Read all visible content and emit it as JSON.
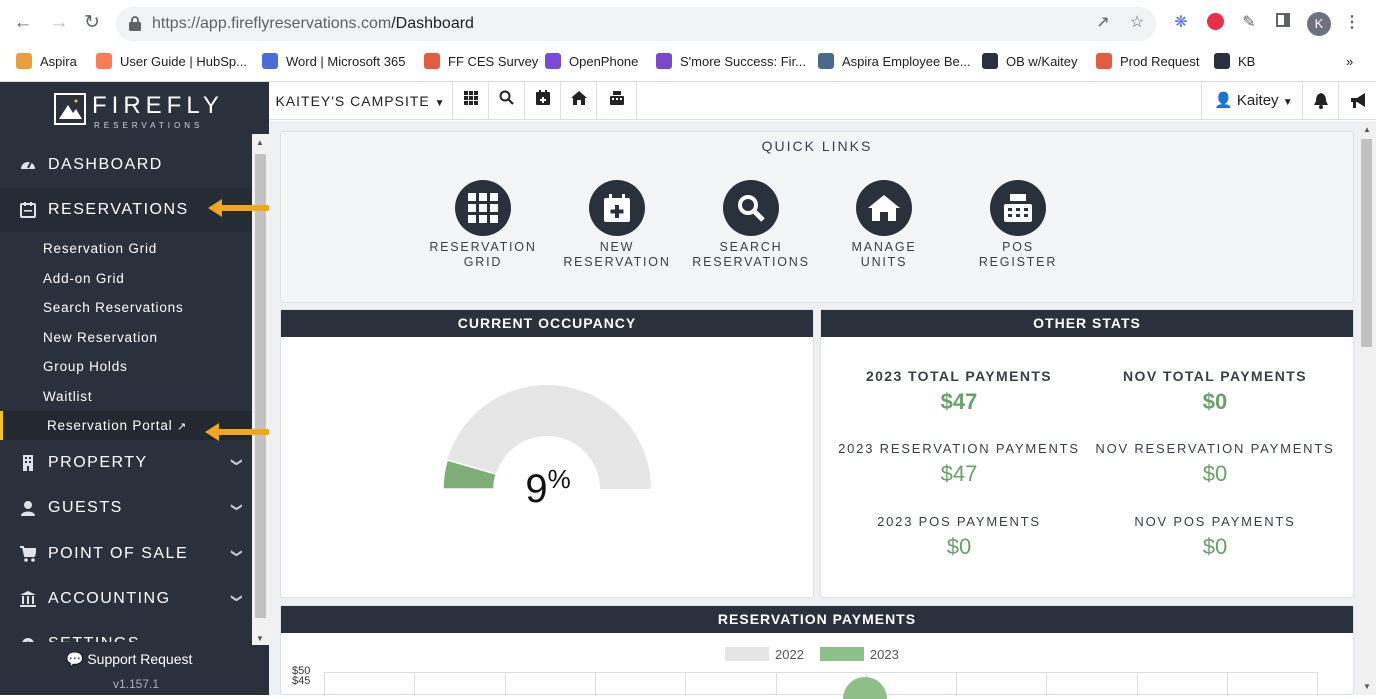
{
  "browser": {
    "url_host": "https://app.fireflyreservations.com",
    "url_path": "/Dashboard",
    "profile_initial": "K"
  },
  "bookmarks": [
    {
      "label": "Aspira",
      "color": "#e8a13a"
    },
    {
      "label": "User Guide | HubSp...",
      "color": "#ff7a59"
    },
    {
      "label": "Word | Microsoft 365",
      "color": "#4b6bd6"
    },
    {
      "label": "FF CES Survey",
      "color": "#e25b47"
    },
    {
      "label": "OpenPhone",
      "color": "#7b4bd6"
    },
    {
      "label": "S'more Success: Fir...",
      "color": "#7a49c9"
    },
    {
      "label": "Aspira Employee Be...",
      "color": "#4a6a8a"
    },
    {
      "label": "OB w/Kaitey",
      "color": "#2b313c"
    },
    {
      "label": "Prod Request",
      "color": "#e25b47"
    },
    {
      "label": "KB",
      "color": "#2b313c"
    }
  ],
  "bookmarks_more": "»",
  "sidebar": {
    "brand": "FIREFLY",
    "brand_sub": "RESERVATIONS",
    "nav": [
      {
        "label": "DASHBOARD",
        "icon": "dashboard-icon"
      },
      {
        "label": "RESERVATIONS",
        "icon": "calendar-icon"
      },
      {
        "label": "PROPERTY",
        "icon": "building-icon"
      },
      {
        "label": "GUESTS",
        "icon": "user-icon"
      },
      {
        "label": "POINT OF SALE",
        "icon": "cart-icon"
      },
      {
        "label": "ACCOUNTING",
        "icon": "bank-icon"
      },
      {
        "label": "SETTINGS",
        "icon": "gear-icon"
      }
    ],
    "reservations_sub": [
      "Reservation Grid",
      "Add-on Grid",
      "Search Reservations",
      "New Reservation",
      "Group Holds",
      "Waitlist",
      "Reservation Portal"
    ],
    "support": "Support Request",
    "version": "v1.157.1"
  },
  "topbar": {
    "campsite": "KAITEY'S CAMPSITE",
    "user": "Kaitey"
  },
  "quick_links": {
    "title": "QUICK LINKS",
    "items": [
      {
        "line1": "RESERVATION",
        "line2": "GRID",
        "icon": "grid-icon"
      },
      {
        "line1": "NEW",
        "line2": "RESERVATION",
        "icon": "calendar-plus-icon"
      },
      {
        "line1": "SEARCH",
        "line2": "RESERVATIONS",
        "icon": "search-icon"
      },
      {
        "line1": "MANAGE",
        "line2": "UNITS",
        "icon": "home-icon"
      },
      {
        "line1": "POS",
        "line2": "REGISTER",
        "icon": "cash-register-icon"
      }
    ]
  },
  "occupancy": {
    "title": "CURRENT OCCUPANCY",
    "value": "9",
    "unit": "%",
    "fraction": 0.09
  },
  "other_stats": {
    "title": "OTHER STATS",
    "items": [
      {
        "label": "2023 TOTAL PAYMENTS",
        "value": "$47"
      },
      {
        "label": "NOV TOTAL PAYMENTS",
        "value": "$0"
      },
      {
        "label": "2023 RESERVATION PAYMENTS",
        "value": "$47"
      },
      {
        "label": "NOV RESERVATION PAYMENTS",
        "value": "$0"
      },
      {
        "label": "2023 POS PAYMENTS",
        "value": "$0"
      },
      {
        "label": "NOV POS PAYMENTS",
        "value": "$0"
      }
    ]
  },
  "payments": {
    "title": "RESERVATION PAYMENTS",
    "legend": [
      {
        "label": "2022",
        "color": "#e5e5e5"
      },
      {
        "label": "2023",
        "color": "#8fbf88"
      }
    ],
    "ticks": [
      "$50",
      "$45"
    ]
  },
  "colors": {
    "sidebar": "#2b313c",
    "accent_green": "#6aa069",
    "arrow": "#f0a71c"
  }
}
